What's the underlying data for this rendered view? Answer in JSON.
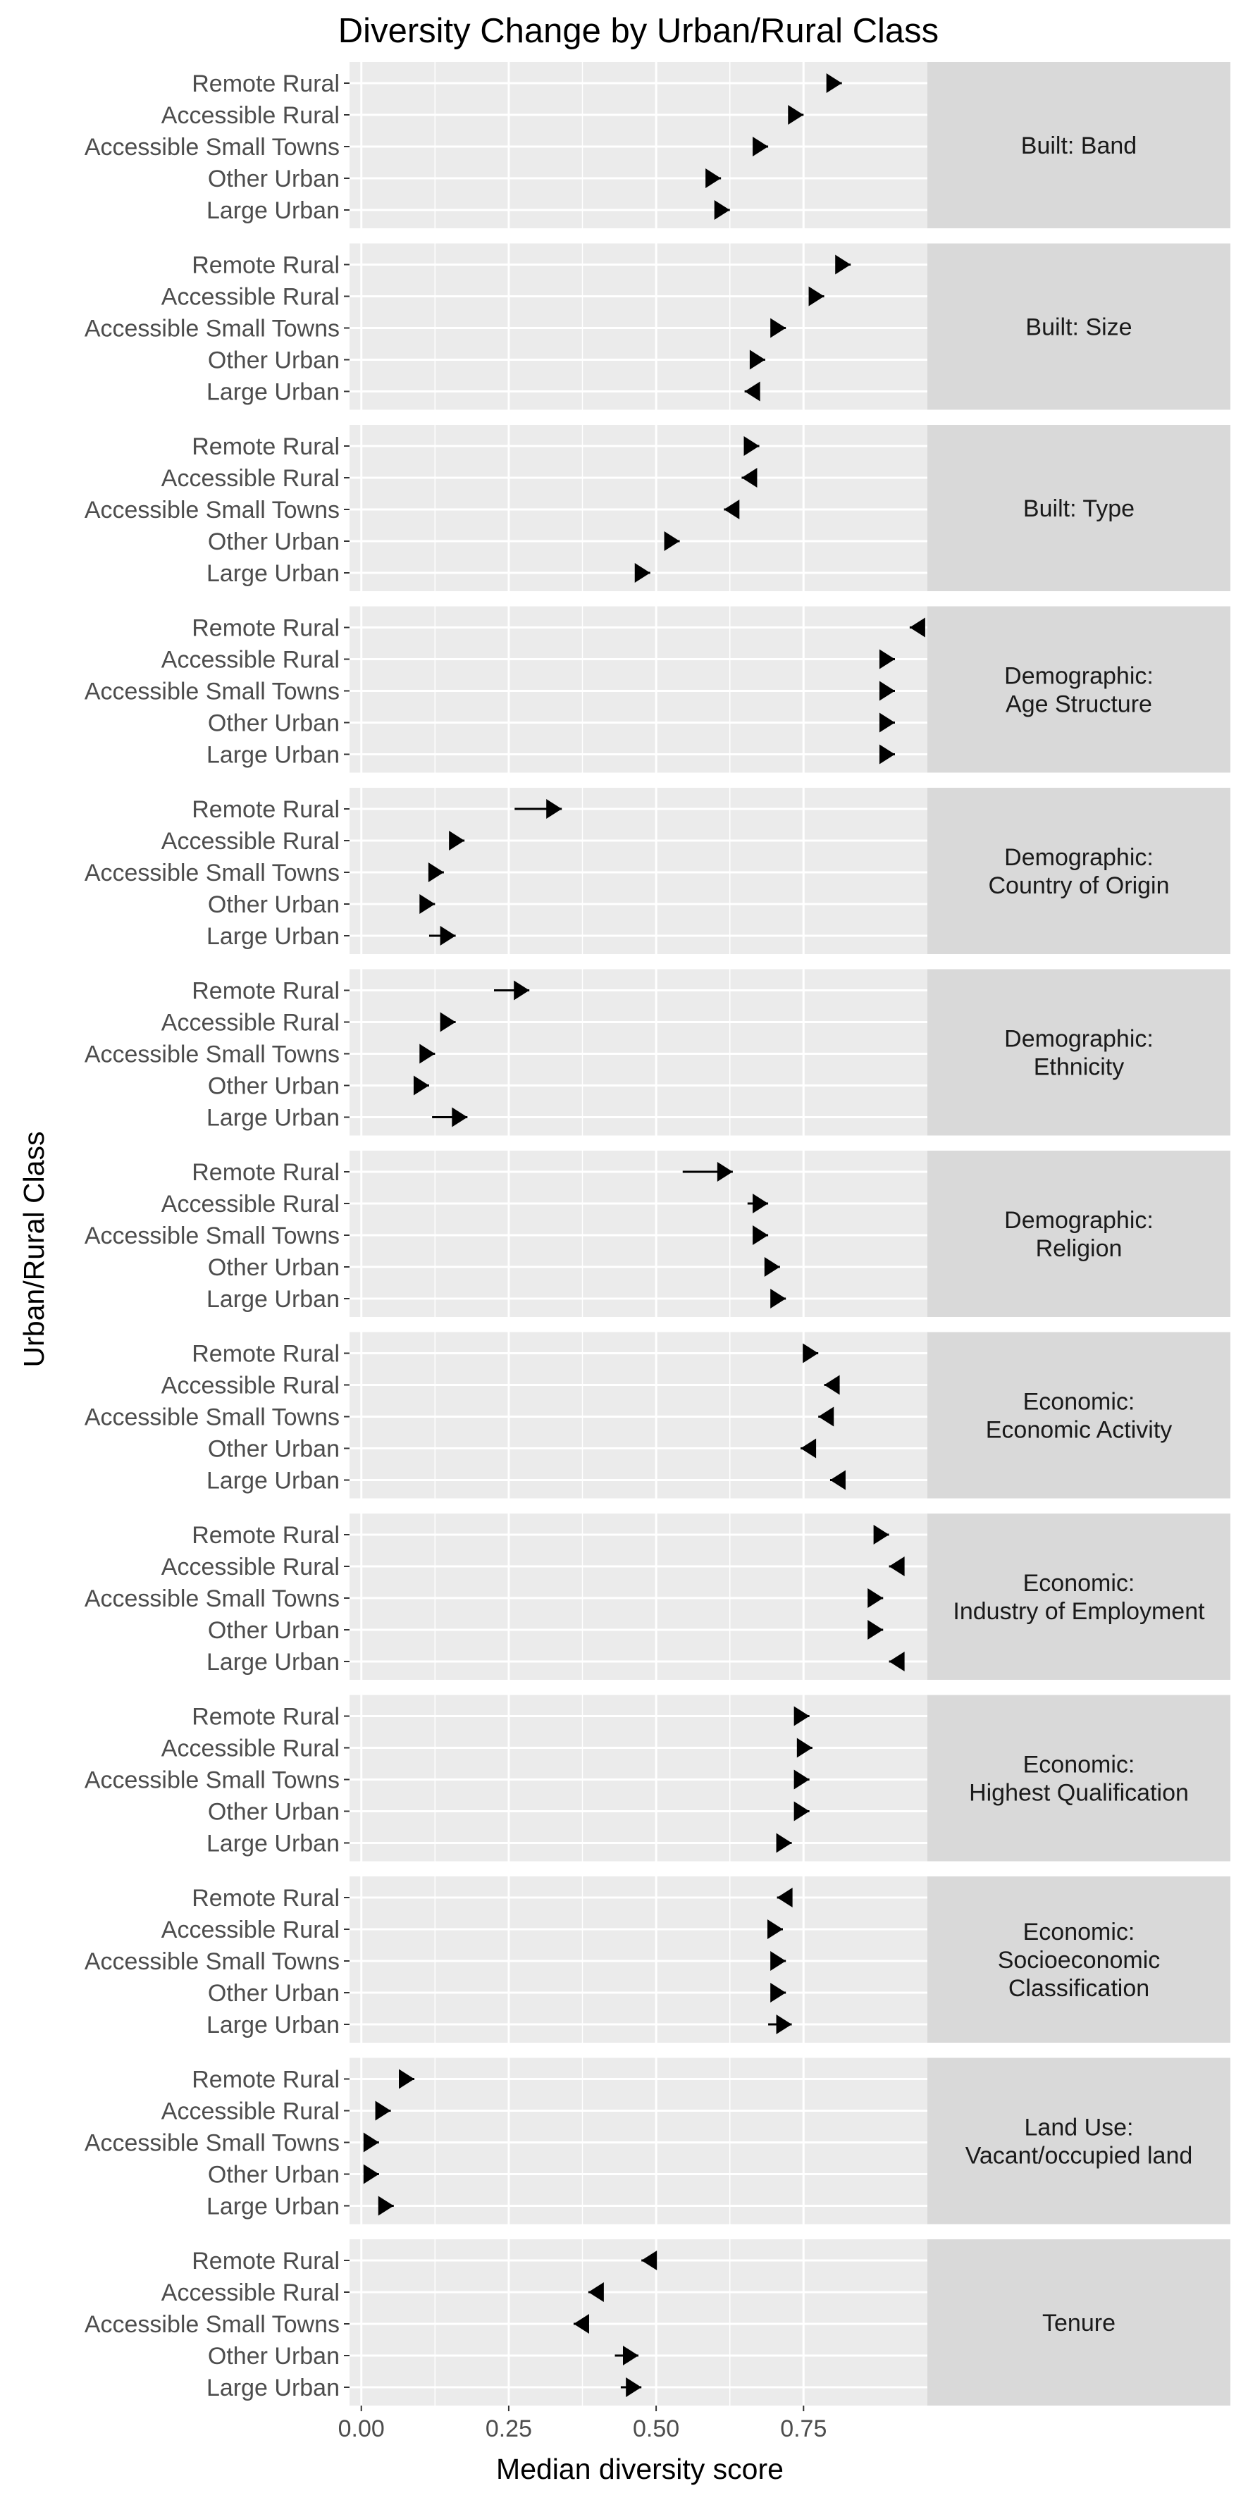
{
  "chart_data": {
    "type": "dot-arrow",
    "title": "Diversity Change by Urban/Rural Class",
    "xlabel": "Median diversity score",
    "ylabel": "Urban/Rural Class",
    "xlim": [
      -0.02,
      0.96
    ],
    "x_ticks": [
      0.0,
      0.25,
      0.5,
      0.75
    ],
    "x_tick_labels": [
      "0.00",
      "0.25",
      "0.50",
      "0.75"
    ],
    "grid": true,
    "legend": "none",
    "categories": [
      "Remote Rural",
      "Accessible Rural",
      "Accessible Small Towns",
      "Other Urban",
      "Large Urban"
    ],
    "panels": [
      {
        "label": [
          "Built: Band"
        ],
        "rows": [
          {
            "category": "Remote Rural",
            "from": 0.8,
            "to": 0.815
          },
          {
            "category": "Accessible Rural",
            "from": 0.735,
            "to": 0.75
          },
          {
            "category": "Accessible Small Towns",
            "from": 0.675,
            "to": 0.69
          },
          {
            "category": "Other Urban",
            "from": 0.595,
            "to": 0.61
          },
          {
            "category": "Large Urban",
            "from": 0.61,
            "to": 0.625
          }
        ]
      },
      {
        "label": [
          "Built: Size"
        ],
        "rows": [
          {
            "category": "Remote Rural",
            "from": 0.815,
            "to": 0.83
          },
          {
            "category": "Accessible Rural",
            "from": 0.77,
            "to": 0.785
          },
          {
            "category": "Accessible Small Towns",
            "from": 0.705,
            "to": 0.72
          },
          {
            "category": "Other Urban",
            "from": 0.67,
            "to": 0.685
          },
          {
            "category": "Large Urban",
            "from": 0.665,
            "to": 0.65
          }
        ]
      },
      {
        "label": [
          "Built: Type"
        ],
        "rows": [
          {
            "category": "Remote Rural",
            "from": 0.66,
            "to": 0.675
          },
          {
            "category": "Accessible Rural",
            "from": 0.66,
            "to": 0.645
          },
          {
            "category": "Accessible Small Towns",
            "from": 0.63,
            "to": 0.615
          },
          {
            "category": "Other Urban",
            "from": 0.525,
            "to": 0.54
          },
          {
            "category": "Large Urban",
            "from": 0.475,
            "to": 0.49
          }
        ]
      },
      {
        "label": [
          "Demographic:",
          "Age Structure"
        ],
        "rows": [
          {
            "category": "Remote Rural",
            "from": 0.945,
            "to": 0.93
          },
          {
            "category": "Accessible Rural",
            "from": 0.89,
            "to": 0.905
          },
          {
            "category": "Accessible Small Towns",
            "from": 0.89,
            "to": 0.905
          },
          {
            "category": "Other Urban",
            "from": 0.89,
            "to": 0.905
          },
          {
            "category": "Large Urban",
            "from": 0.89,
            "to": 0.905
          }
        ]
      },
      {
        "label": [
          "Demographic:",
          "Country of Origin"
        ],
        "rows": [
          {
            "category": "Remote Rural",
            "from": 0.26,
            "to": 0.34
          },
          {
            "category": "Accessible Rural",
            "from": 0.16,
            "to": 0.175
          },
          {
            "category": "Accessible Small Towns",
            "from": 0.125,
            "to": 0.14
          },
          {
            "category": "Other Urban",
            "from": 0.11,
            "to": 0.125
          },
          {
            "category": "Large Urban",
            "from": 0.115,
            "to": 0.16
          }
        ]
      },
      {
        "label": [
          "Demographic:",
          "Ethnicity"
        ],
        "rows": [
          {
            "category": "Remote Rural",
            "from": 0.225,
            "to": 0.285
          },
          {
            "category": "Accessible Rural",
            "from": 0.145,
            "to": 0.16
          },
          {
            "category": "Accessible Small Towns",
            "from": 0.11,
            "to": 0.125
          },
          {
            "category": "Other Urban",
            "from": 0.1,
            "to": 0.115
          },
          {
            "category": "Large Urban",
            "from": 0.12,
            "to": 0.18
          }
        ]
      },
      {
        "label": [
          "Demographic:",
          "Religion"
        ],
        "rows": [
          {
            "category": "Remote Rural",
            "from": 0.545,
            "to": 0.63
          },
          {
            "category": "Accessible Rural",
            "from": 0.655,
            "to": 0.69
          },
          {
            "category": "Accessible Small Towns",
            "from": 0.675,
            "to": 0.69
          },
          {
            "category": "Other Urban",
            "from": 0.695,
            "to": 0.71
          },
          {
            "category": "Large Urban",
            "from": 0.705,
            "to": 0.72
          }
        ]
      },
      {
        "label": [
          "Economic:",
          "Economic Activity"
        ],
        "rows": [
          {
            "category": "Remote Rural",
            "from": 0.76,
            "to": 0.775
          },
          {
            "category": "Accessible Rural",
            "from": 0.8,
            "to": 0.785
          },
          {
            "category": "Accessible Small Towns",
            "from": 0.79,
            "to": 0.775
          },
          {
            "category": "Other Urban",
            "from": 0.76,
            "to": 0.745
          },
          {
            "category": "Large Urban",
            "from": 0.81,
            "to": 0.795
          }
        ]
      },
      {
        "label": [
          "Economic:",
          "Industry of Employment"
        ],
        "rows": [
          {
            "category": "Remote Rural",
            "from": 0.88,
            "to": 0.895
          },
          {
            "category": "Accessible Rural",
            "from": 0.91,
            "to": 0.895
          },
          {
            "category": "Accessible Small Towns",
            "from": 0.87,
            "to": 0.885
          },
          {
            "category": "Other Urban",
            "from": 0.87,
            "to": 0.885
          },
          {
            "category": "Large Urban",
            "from": 0.91,
            "to": 0.895
          }
        ]
      },
      {
        "label": [
          "Economic:",
          "Highest Qualification"
        ],
        "rows": [
          {
            "category": "Remote Rural",
            "from": 0.745,
            "to": 0.76
          },
          {
            "category": "Accessible Rural",
            "from": 0.75,
            "to": 0.765
          },
          {
            "category": "Accessible Small Towns",
            "from": 0.745,
            "to": 0.76
          },
          {
            "category": "Other Urban",
            "from": 0.745,
            "to": 0.76
          },
          {
            "category": "Large Urban",
            "from": 0.715,
            "to": 0.73
          }
        ]
      },
      {
        "label": [
          "Economic:",
          "Socioeconomic",
          "Classification"
        ],
        "rows": [
          {
            "category": "Remote Rural",
            "from": 0.72,
            "to": 0.705
          },
          {
            "category": "Accessible Rural",
            "from": 0.7,
            "to": 0.715
          },
          {
            "category": "Accessible Small Towns",
            "from": 0.705,
            "to": 0.72
          },
          {
            "category": "Other Urban",
            "from": 0.705,
            "to": 0.72
          },
          {
            "category": "Large Urban",
            "from": 0.69,
            "to": 0.73
          }
        ]
      },
      {
        "label": [
          "Land Use:",
          "Vacant/occupied land"
        ],
        "rows": [
          {
            "category": "Remote Rural",
            "from": 0.075,
            "to": 0.09
          },
          {
            "category": "Accessible Rural",
            "from": 0.035,
            "to": 0.05
          },
          {
            "category": "Accessible Small Towns",
            "from": 0.015,
            "to": 0.03
          },
          {
            "category": "Other Urban",
            "from": 0.015,
            "to": 0.03
          },
          {
            "category": "Large Urban",
            "from": 0.04,
            "to": 0.055
          }
        ]
      },
      {
        "label": [
          "Tenure"
        ],
        "rows": [
          {
            "category": "Remote Rural",
            "from": 0.49,
            "to": 0.475
          },
          {
            "category": "Accessible Rural",
            "from": 0.4,
            "to": 0.385
          },
          {
            "category": "Accessible Small Towns",
            "from": 0.375,
            "to": 0.36
          },
          {
            "category": "Other Urban",
            "from": 0.43,
            "to": 0.47
          },
          {
            "category": "Large Urban",
            "from": 0.44,
            "to": 0.475
          }
        ]
      }
    ]
  }
}
